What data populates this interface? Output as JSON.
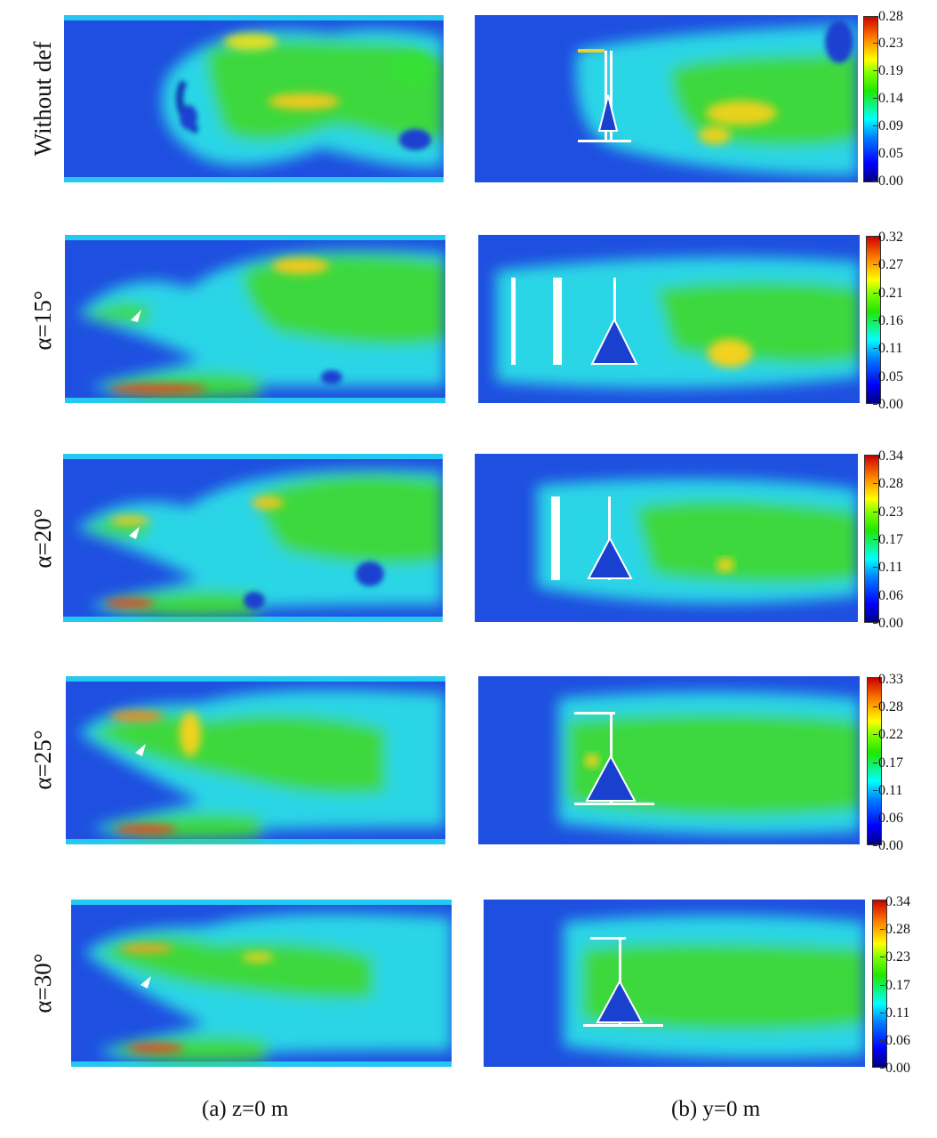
{
  "rows": [
    {
      "label": "Without def",
      "colorbar_ticks": [
        "0.28",
        "0.23",
        "0.19",
        "0.14",
        "0.09",
        "0.05",
        "0.00"
      ]
    },
    {
      "label": "α=15°",
      "colorbar_ticks": [
        "0.32",
        "0.27",
        "0.21",
        "0.16",
        "0.11",
        "0.05",
        "0.00"
      ]
    },
    {
      "label": "α=20°",
      "colorbar_ticks": [
        "0.34",
        "0.28",
        "0.23",
        "0.17",
        "0.11",
        "0.06",
        "0.00"
      ]
    },
    {
      "label": "α=25°",
      "colorbar_ticks": [
        "0.33",
        "0.28",
        "0.22",
        "0.17",
        "0.11",
        "0.06",
        "0.00"
      ]
    },
    {
      "label": "α=30°",
      "colorbar_ticks": [
        "0.34",
        "0.28",
        "0.23",
        "0.17",
        "0.11",
        "0.06",
        "0.00"
      ]
    }
  ],
  "captions": {
    "a": "(a)  z=0 m",
    "b": "(b)  y=0 m"
  },
  "colormap": [
    "#0000ff",
    "#00ffff",
    "#22e600",
    "#ffff00",
    "#ff0000"
  ]
}
